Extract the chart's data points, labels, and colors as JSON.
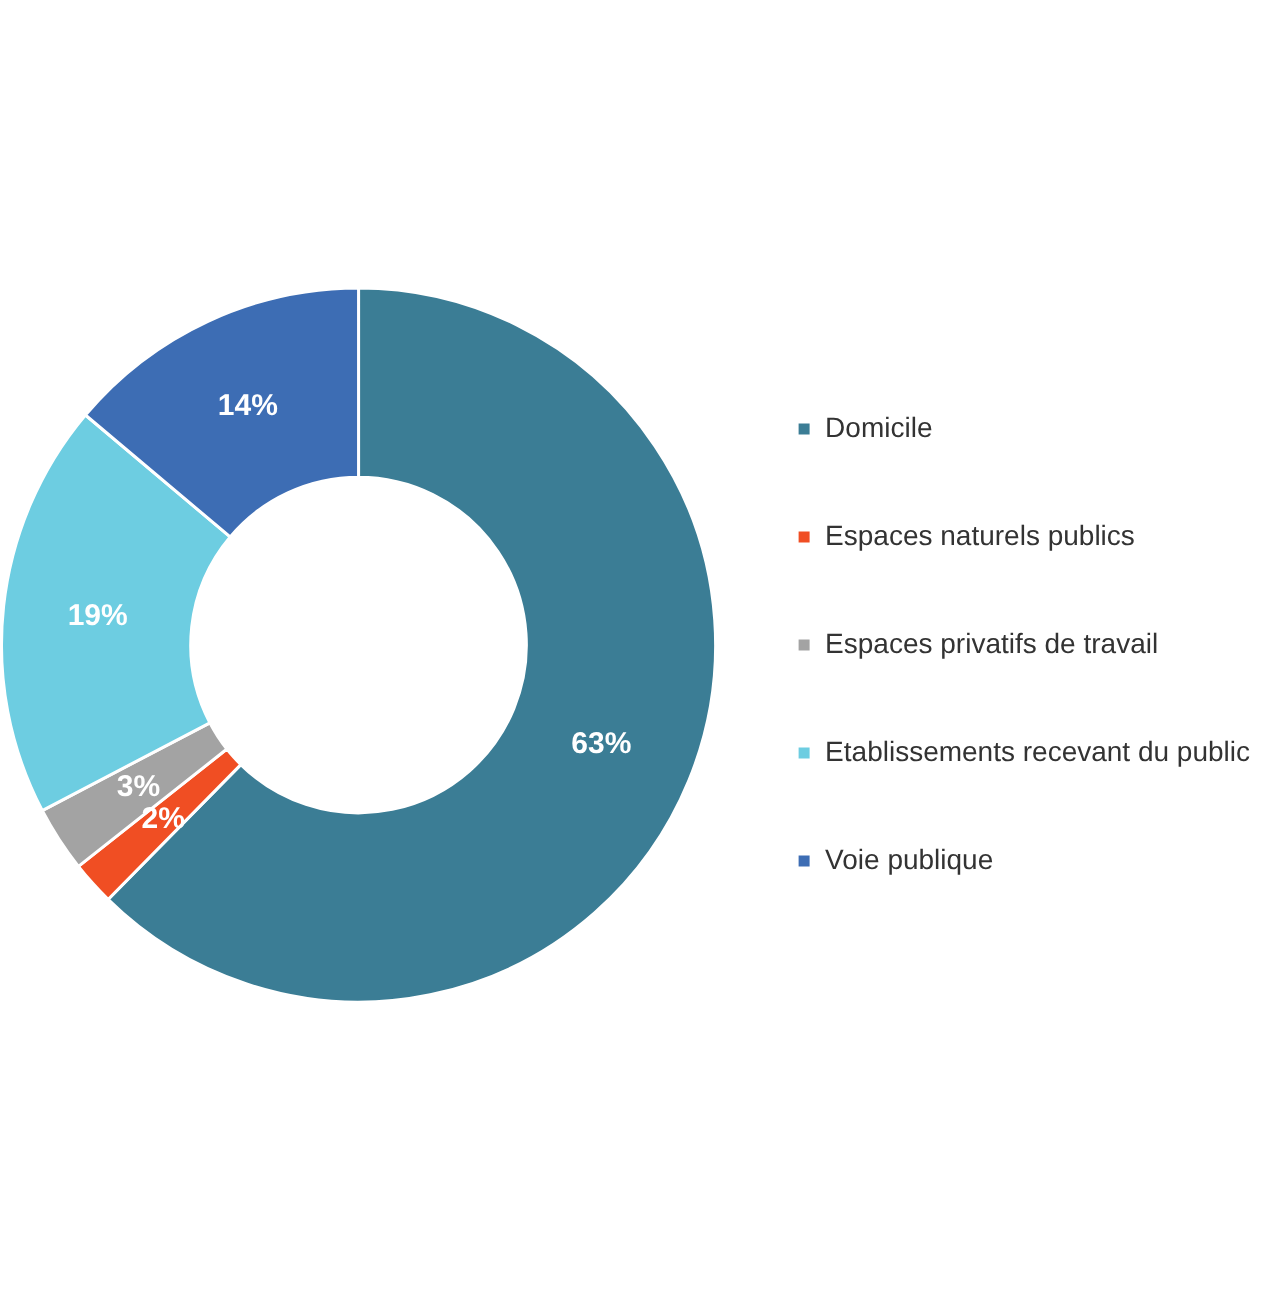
{
  "chart_data": {
    "type": "donut",
    "categories": [
      "Domicile",
      "Espaces naturels publics",
      "Espaces privatifs de travail",
      "Etablissements recevant du public",
      "Voie publique"
    ],
    "values": [
      63,
      2,
      3,
      19,
      14
    ],
    "colors": [
      "#3b7d95",
      "#f04e23",
      "#a3a3a3",
      "#6dcde1",
      "#3d6db4"
    ],
    "value_labels": [
      "63%",
      "2%",
      "3%",
      "19%",
      "14%"
    ],
    "legend": "right"
  }
}
